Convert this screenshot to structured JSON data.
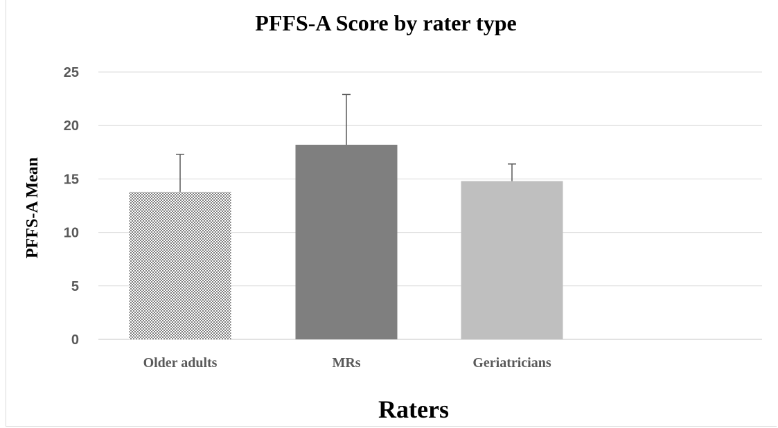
{
  "chart_data": {
    "type": "bar",
    "title": "PFFS-A Score by rater type",
    "xlabel": "Raters",
    "ylabel": "PFFS-A Mean",
    "categories": [
      "Older adults",
      "MRs",
      "Geriatricians"
    ],
    "values": [
      13.8,
      18.2,
      14.8
    ],
    "error_upper": [
      3.5,
      4.7,
      1.6
    ],
    "ylim": [
      0,
      25
    ],
    "yticks": [
      0,
      5,
      10,
      15,
      20,
      25
    ],
    "grid": true,
    "legend": "none",
    "bar_styles": [
      {
        "fill": "pattern-checker",
        "color": "#808080"
      },
      {
        "fill": "solid",
        "color": "#7f7f7f"
      },
      {
        "fill": "solid",
        "color": "#bfbfbf"
      }
    ]
  }
}
